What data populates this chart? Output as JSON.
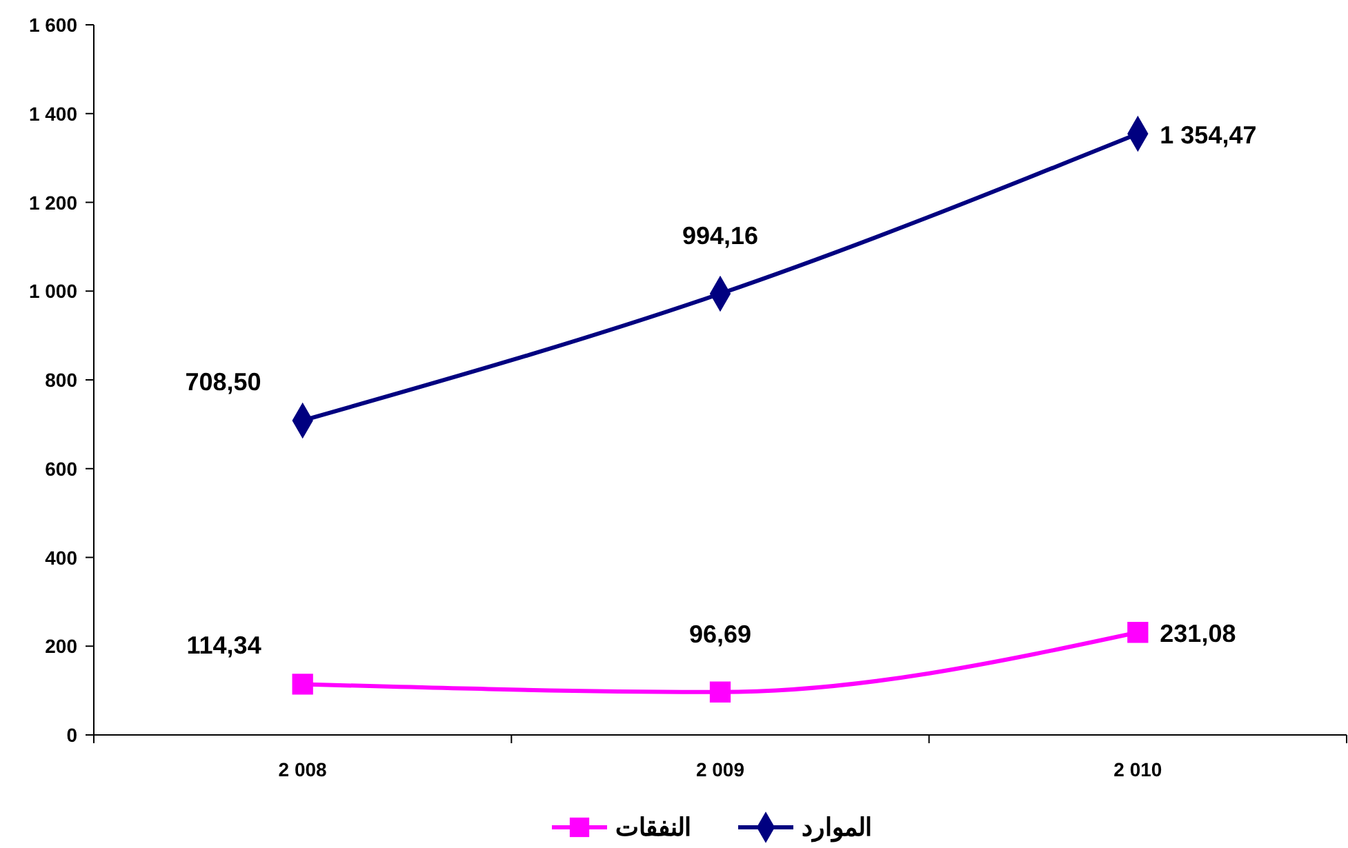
{
  "chart_data": {
    "type": "line",
    "categories": [
      "2 008",
      "2 009",
      "2 010"
    ],
    "series": [
      {
        "name": "الموارد",
        "color": "#000080",
        "marker": "diamond",
        "values": [
          708.5,
          994.16,
          1354.47
        ],
        "value_labels": [
          "708,50",
          "994,16",
          "1 354,47"
        ]
      },
      {
        "name": "النفقات",
        "color": "#ff00ff",
        "marker": "square",
        "values": [
          114.34,
          96.69,
          231.08
        ],
        "value_labels": [
          "114,34",
          "96,69",
          "231,08"
        ]
      }
    ],
    "ylim": [
      0,
      1600
    ],
    "yticks": [
      0,
      200,
      400,
      600,
      800,
      {
        "value": 1000,
        "label": "1 000"
      },
      {
        "value": 1200,
        "label": "1 200"
      },
      {
        "value": 1400,
        "label": "1 400"
      },
      {
        "value": 1600,
        "label": "1 600"
      }
    ],
    "grid": false,
    "legend": "bottom",
    "line_style": "solid"
  }
}
